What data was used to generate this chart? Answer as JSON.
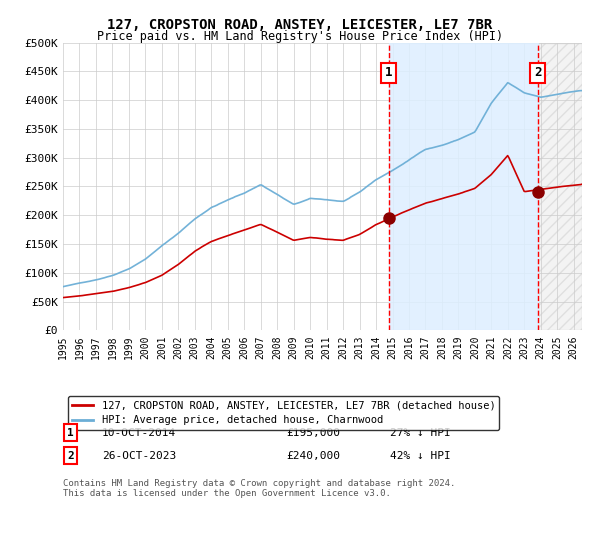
{
  "title1": "127, CROPSTON ROAD, ANSTEY, LEICESTER, LE7 7BR",
  "title2": "Price paid vs. HM Land Registry's House Price Index (HPI)",
  "ylim": [
    0,
    500000
  ],
  "yticks": [
    0,
    50000,
    100000,
    150000,
    200000,
    250000,
    300000,
    350000,
    400000,
    450000,
    500000
  ],
  "ytick_labels": [
    "£0",
    "£50K",
    "£100K",
    "£150K",
    "£200K",
    "£250K",
    "£300K",
    "£350K",
    "£400K",
    "£450K",
    "£500K"
  ],
  "xlim_start": 1995.0,
  "xlim_end": 2026.5,
  "hpi_color": "#6baed6",
  "price_color": "#cc0000",
  "dot_color": "#8b0000",
  "vline_color": "#ff0000",
  "shade_color": "#ddeeff",
  "grid_color": "#cccccc",
  "bg_color": "#ffffff",
  "legend_label_red": "127, CROPSTON ROAD, ANSTEY, LEICESTER, LE7 7BR (detached house)",
  "legend_label_blue": "HPI: Average price, detached house, Charnwood",
  "sale1_date": "10-OCT-2014",
  "sale1_year": 2014.78,
  "sale1_price": 195000,
  "sale1_label": "£195,000",
  "sale1_pct": "27% ↓ HPI",
  "sale2_date": "26-OCT-2023",
  "sale2_year": 2023.82,
  "sale2_price": 240000,
  "sale2_label": "£240,000",
  "sale2_pct": "42% ↓ HPI",
  "footnote": "Contains HM Land Registry data © Crown copyright and database right 2024.\nThis data is licensed under the Open Government Licence v3.0.",
  "hpi_waypoints_x": [
    1995,
    1996,
    1997,
    1998,
    1999,
    2000,
    2001,
    2002,
    2003,
    2004,
    2005,
    2006,
    2007,
    2008,
    2009,
    2010,
    2011,
    2012,
    2013,
    2014,
    2015,
    2016,
    2017,
    2018,
    2019,
    2020,
    2021,
    2022,
    2023,
    2024,
    2025,
    2026,
    2027
  ],
  "hpi_waypoints_y": [
    76000,
    82000,
    88000,
    96000,
    108000,
    125000,
    148000,
    170000,
    195000,
    215000,
    228000,
    240000,
    255000,
    238000,
    220000,
    230000,
    228000,
    225000,
    240000,
    262000,
    278000,
    296000,
    315000,
    322000,
    332000,
    345000,
    395000,
    430000,
    412000,
    405000,
    410000,
    415000,
    418000
  ],
  "price_waypoints_x": [
    1995,
    1996,
    1997,
    1998,
    1999,
    2000,
    2001,
    2002,
    2003,
    2004,
    2005,
    2006,
    2007,
    2008,
    2009,
    2010,
    2011,
    2012,
    2013,
    2014,
    2015,
    2016,
    2017,
    2018,
    2019,
    2020,
    2021,
    2022,
    2023,
    2024,
    2025,
    2026,
    2027
  ],
  "price_waypoints_y": [
    57000,
    60000,
    64000,
    68000,
    74000,
    83000,
    96000,
    115000,
    138000,
    155000,
    165000,
    175000,
    185000,
    172000,
    158000,
    163000,
    160000,
    158000,
    168000,
    185000,
    198000,
    210000,
    222000,
    230000,
    238000,
    248000,
    272000,
    305000,
    242000,
    246000,
    250000,
    253000,
    255000
  ]
}
